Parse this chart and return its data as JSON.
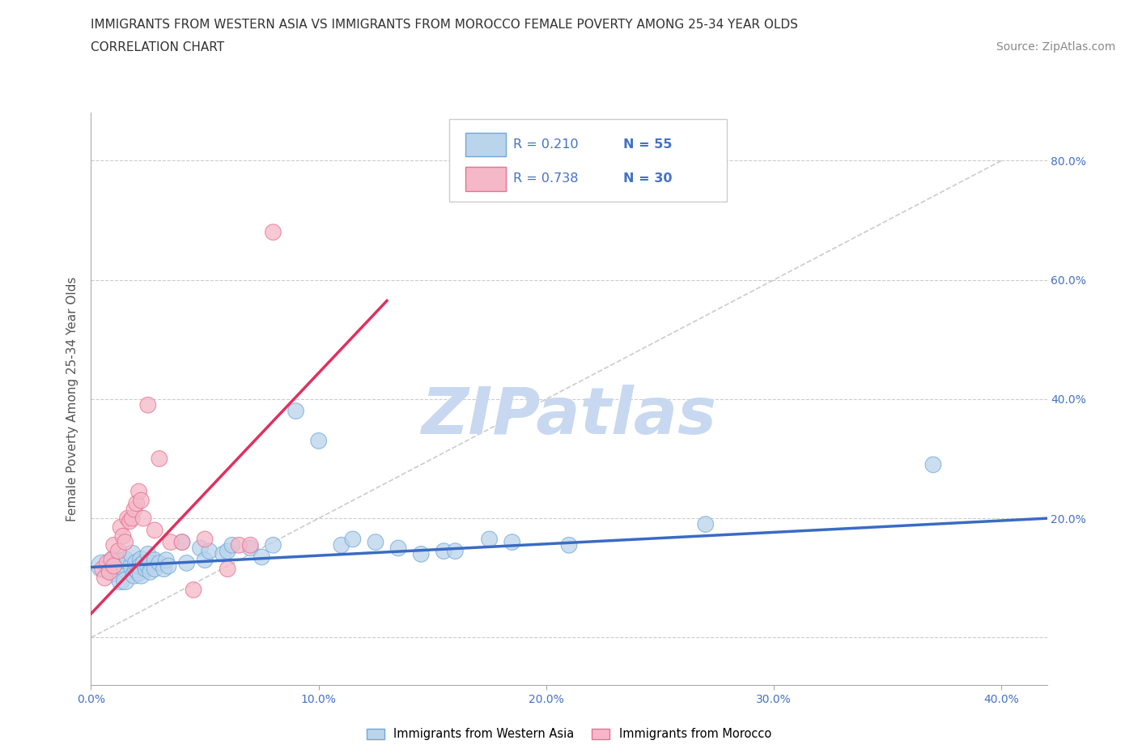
{
  "title_line1": "IMMIGRANTS FROM WESTERN ASIA VS IMMIGRANTS FROM MOROCCO FEMALE POVERTY AMONG 25-34 YEAR OLDS",
  "title_line2": "CORRELATION CHART",
  "source_text": "Source: ZipAtlas.com",
  "ylabel": "Female Poverty Among 25-34 Year Olds",
  "xlim": [
    0.0,
    0.42
  ],
  "ylim": [
    -0.08,
    0.88
  ],
  "xticks": [
    0.0,
    0.1,
    0.2,
    0.3,
    0.4
  ],
  "xtick_labels": [
    "0.0%",
    "10.0%",
    "20.0%",
    "30.0%",
    "40.0%"
  ],
  "yticks_right": [
    0.2,
    0.4,
    0.6,
    0.8
  ],
  "ytick_labels_right": [
    "20.0%",
    "40.0%",
    "60.0%",
    "80.0%"
  ],
  "yticks_hgrid": [
    0.0,
    0.2,
    0.4,
    0.6,
    0.8
  ],
  "blue_R": "0.210",
  "blue_N": "55",
  "pink_R": "0.738",
  "pink_N": "30",
  "blue_fill": "#bad4ec",
  "pink_fill": "#f4b8c8",
  "blue_edge": "#6fa8d8",
  "pink_edge": "#e87090",
  "blue_line_color": "#3a6bc4",
  "pink_line_color": "#e03060",
  "diag_line_color": "#cccccc",
  "watermark_color": "#c8d8f0",
  "watermark_text": "ZIPatlas",
  "legend_label_blue": "Immigrants from Western Asia",
  "legend_label_pink": "Immigrants from Morocco",
  "blue_scatter_x": [
    0.005,
    0.008,
    0.01,
    0.01,
    0.012,
    0.013,
    0.015,
    0.015,
    0.015,
    0.018,
    0.018,
    0.019,
    0.02,
    0.02,
    0.021,
    0.022,
    0.022,
    0.022,
    0.023,
    0.024,
    0.025,
    0.025,
    0.026,
    0.026,
    0.028,
    0.028,
    0.03,
    0.032,
    0.033,
    0.034,
    0.04,
    0.042,
    0.048,
    0.05,
    0.052,
    0.058,
    0.06,
    0.062,
    0.07,
    0.075,
    0.08,
    0.09,
    0.1,
    0.11,
    0.115,
    0.125,
    0.135,
    0.145,
    0.155,
    0.16,
    0.175,
    0.185,
    0.21,
    0.27,
    0.37
  ],
  "blue_scatter_y": [
    0.12,
    0.115,
    0.13,
    0.11,
    0.125,
    0.095,
    0.115,
    0.13,
    0.095,
    0.12,
    0.14,
    0.105,
    0.115,
    0.125,
    0.11,
    0.13,
    0.12,
    0.105,
    0.125,
    0.115,
    0.12,
    0.14,
    0.125,
    0.11,
    0.13,
    0.115,
    0.125,
    0.115,
    0.13,
    0.12,
    0.16,
    0.125,
    0.15,
    0.13,
    0.145,
    0.14,
    0.145,
    0.155,
    0.15,
    0.135,
    0.155,
    0.38,
    0.33,
    0.155,
    0.165,
    0.16,
    0.15,
    0.14,
    0.145,
    0.145,
    0.165,
    0.16,
    0.155,
    0.19,
    0.29
  ],
  "blue_scatter_size": [
    400,
    300,
    300,
    300,
    300,
    250,
    250,
    250,
    250,
    250,
    250,
    250,
    250,
    250,
    250,
    250,
    250,
    250,
    200,
    200,
    200,
    200,
    200,
    200,
    200,
    200,
    200,
    200,
    200,
    200,
    200,
    200,
    200,
    200,
    200,
    200,
    200,
    200,
    200,
    200,
    200,
    200,
    200,
    200,
    200,
    200,
    200,
    200,
    200,
    200,
    200,
    200,
    200,
    200,
    200
  ],
  "pink_scatter_x": [
    0.005,
    0.006,
    0.007,
    0.008,
    0.009,
    0.01,
    0.01,
    0.012,
    0.013,
    0.014,
    0.015,
    0.016,
    0.017,
    0.018,
    0.019,
    0.02,
    0.021,
    0.022,
    0.023,
    0.025,
    0.028,
    0.03,
    0.035,
    0.04,
    0.045,
    0.05,
    0.06,
    0.065,
    0.07,
    0.08
  ],
  "pink_scatter_y": [
    0.115,
    0.1,
    0.125,
    0.11,
    0.13,
    0.12,
    0.155,
    0.145,
    0.185,
    0.17,
    0.16,
    0.2,
    0.195,
    0.2,
    0.215,
    0.225,
    0.245,
    0.23,
    0.2,
    0.39,
    0.18,
    0.3,
    0.16,
    0.16,
    0.08,
    0.165,
    0.115,
    0.155,
    0.155,
    0.68
  ],
  "pink_scatter_size": [
    200,
    200,
    200,
    200,
    200,
    200,
    200,
    200,
    200,
    200,
    200,
    200,
    200,
    200,
    200,
    200,
    200,
    200,
    200,
    200,
    200,
    200,
    200,
    200,
    200,
    200,
    200,
    200,
    200,
    200
  ],
  "blue_trend_x": [
    0.0,
    0.42
  ],
  "blue_trend_y": [
    0.118,
    0.2
  ],
  "pink_trend_x": [
    0.0,
    0.13
  ],
  "pink_trend_y": [
    0.04,
    0.565
  ],
  "diag_line_x": [
    0.0,
    0.4
  ],
  "diag_line_y": [
    0.0,
    0.8
  ],
  "title_fontsize": 11,
  "axis_label_fontsize": 11,
  "tick_fontsize": 10,
  "source_fontsize": 10,
  "watermark_fontsize": 58
}
